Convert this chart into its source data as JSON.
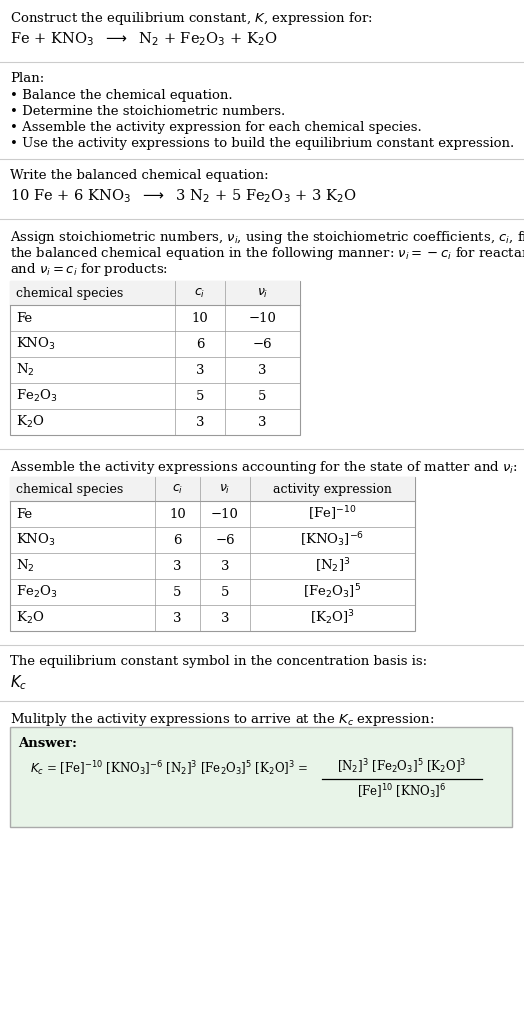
{
  "title_line1": "Construct the equilibrium constant, $K$, expression for:",
  "title_line2": "Fe + KNO$_3$  $\\longrightarrow$  N$_2$ + Fe$_2$O$_3$ + K$_2$O",
  "plan_header": "Plan:",
  "plan_bullets": [
    "• Balance the chemical equation.",
    "• Determine the stoichiometric numbers.",
    "• Assemble the activity expression for each chemical species.",
    "• Use the activity expressions to build the equilibrium constant expression."
  ],
  "balanced_header": "Write the balanced chemical equation:",
  "balanced_eq": "10 Fe + 6 KNO$_3$  $\\longrightarrow$  3 N$_2$ + 5 Fe$_2$O$_3$ + 3 K$_2$O",
  "stoich_intro_lines": [
    "Assign stoichiometric numbers, $\\nu_i$, using the stoichiometric coefficients, $c_i$, from",
    "the balanced chemical equation in the following manner: $\\nu_i = -c_i$ for reactants",
    "and $\\nu_i = c_i$ for products:"
  ],
  "table1_headers": [
    "chemical species",
    "$c_i$",
    "$\\nu_i$"
  ],
  "table1_rows": [
    [
      "Fe",
      "10",
      "−10"
    ],
    [
      "KNO$_3$",
      "6",
      "−6"
    ],
    [
      "N$_2$",
      "3",
      "3"
    ],
    [
      "Fe$_2$O$_3$",
      "5",
      "5"
    ],
    [
      "K$_2$O",
      "3",
      "3"
    ]
  ],
  "activity_intro": "Assemble the activity expressions accounting for the state of matter and $\\nu_i$:",
  "table2_headers": [
    "chemical species",
    "$c_i$",
    "$\\nu_i$",
    "activity expression"
  ],
  "table2_rows": [
    [
      "Fe",
      "10",
      "−10",
      "[Fe]$^{-10}$"
    ],
    [
      "KNO$_3$",
      "6",
      "−6",
      "[KNO$_3$]$^{-6}$"
    ],
    [
      "N$_2$",
      "3",
      "3",
      "[N$_2$]$^3$"
    ],
    [
      "Fe$_2$O$_3$",
      "5",
      "5",
      "[Fe$_2$O$_3$]$^5$"
    ],
    [
      "K$_2$O",
      "3",
      "3",
      "[K$_2$O]$^3$"
    ]
  ],
  "kc_intro": "The equilibrium constant symbol in the concentration basis is:",
  "kc_symbol": "$K_c$",
  "multiply_intro": "Mulitply the activity expressions to arrive at the $K_c$ expression:",
  "answer_label": "Answer:",
  "answer_eq": "$K_c$ = [Fe]$^{-10}$ [KNO$_3$]$^{-6}$ [N$_2$]$^3$ [Fe$_2$O$_3$]$^5$ [K$_2$O]$^3$ =",
  "answer_numerator": "[N$_2$]$^3$ [Fe$_2$O$_3$]$^5$ [K$_2$O]$^3$",
  "answer_denominator": "[Fe]$^{10}$ [KNO$_3$]$^6$",
  "bg_color": "#ffffff",
  "text_color": "#000000",
  "answer_box_color": "#e8f4e8",
  "answer_box_border": "#aaaaaa",
  "sep_line_color": "#cccccc",
  "table_border_color": "#999999",
  "font_size": 9.5
}
